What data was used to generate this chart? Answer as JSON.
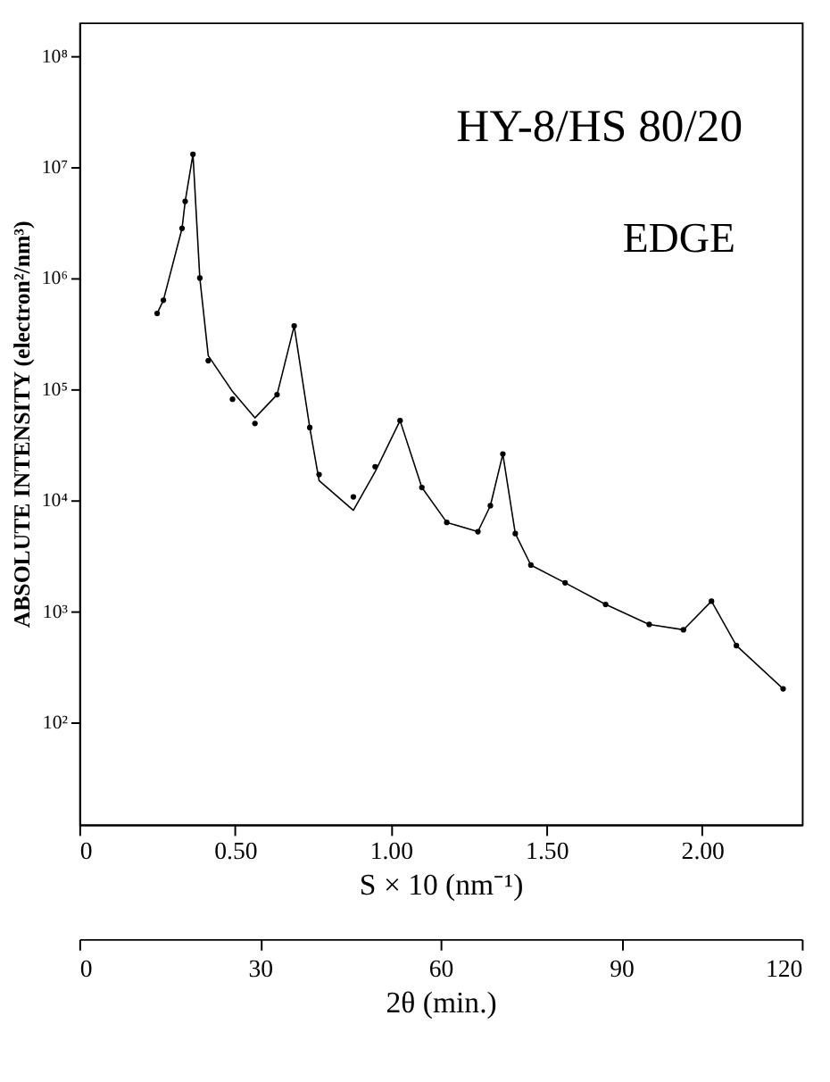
{
  "chart_data": {
    "type": "scatter",
    "xlabel": "S × 10   (nm⁻¹)",
    "ylabel": "ABSOLUTE INTENSITY  (electron²/nm³)",
    "x2label": "2θ   (min.)",
    "annotations": [
      "HY-8/HS   80/20",
      "EDGE"
    ],
    "log": "y",
    "xlim": [
      0,
      2.32
    ],
    "ylim": [
      12,
      200000000
    ],
    "xticks": [
      0,
      {
        "value": 0.5,
        "label": "0.50"
      },
      {
        "value": 1,
        "label": "1.00"
      },
      {
        "value": 1.5,
        "label": "1.50"
      },
      {
        "value": 2,
        "label": "2.00"
      }
    ],
    "yticks": [
      {
        "value": 100,
        "label": "10²"
      },
      {
        "value": 1000,
        "label": "10³"
      },
      {
        "value": 10000,
        "label": "10⁴"
      },
      {
        "value": 100000,
        "label": "10⁵"
      },
      {
        "value": 1000000,
        "label": "10⁶"
      },
      {
        "value": 10000000,
        "label": "10⁷"
      },
      {
        "value": 100000000,
        "label": "10⁸"
      }
    ],
    "x2lim": [
      0,
      120
    ],
    "x2ticks": [
      0,
      30,
      60,
      90,
      120
    ],
    "grid": false,
    "series": [
      {
        "marker": "circle",
        "color": "#000000",
        "x": [
          0.25,
          0.27,
          0.33,
          0.34,
          0.365,
          0.387,
          0.414,
          0.492,
          0.564,
          0.635,
          0.69,
          0.74,
          0.77,
          0.88,
          0.95,
          1.03,
          1.1,
          1.18,
          1.28,
          1.32,
          1.36,
          1.4,
          1.45,
          1.56,
          1.69,
          1.83,
          1.94,
          2.03,
          2.11,
          2.26
        ],
        "values": [
          480000,
          630000,
          2800000,
          4900000,
          13000000,
          1000000,
          180000,
          81000,
          49000,
          89000,
          370000,
          45000,
          17000,
          10700,
          20000,
          52000,
          13000,
          6300,
          5200,
          8900,
          26000,
          5000,
          2600,
          1800,
          1150,
          760,
          680,
          1230,
          490,
          200
        ]
      },
      {
        "type": "line",
        "line_style": "solid",
        "color": "#000000",
        "x": [
          0.25,
          0.27,
          0.33,
          0.34,
          0.365,
          0.387,
          0.414,
          0.492,
          0.564,
          0.635,
          0.69,
          0.74,
          0.77,
          0.88,
          0.95,
          1.03,
          1.1,
          1.18,
          1.28,
          1.32,
          1.36,
          1.4,
          1.45,
          1.56,
          1.69,
          1.83,
          1.94,
          2.03,
          2.11,
          2.26
        ],
        "values": [
          480000,
          630000,
          2800000,
          4900000,
          13000000,
          1000000,
          200000,
          95000,
          55000,
          89000,
          370000,
          45000,
          15000,
          8100,
          18000,
          52000,
          13000,
          6300,
          5200,
          8900,
          26000,
          5000,
          2600,
          1800,
          1150,
          760,
          680,
          1230,
          490,
          200
        ]
      }
    ]
  }
}
